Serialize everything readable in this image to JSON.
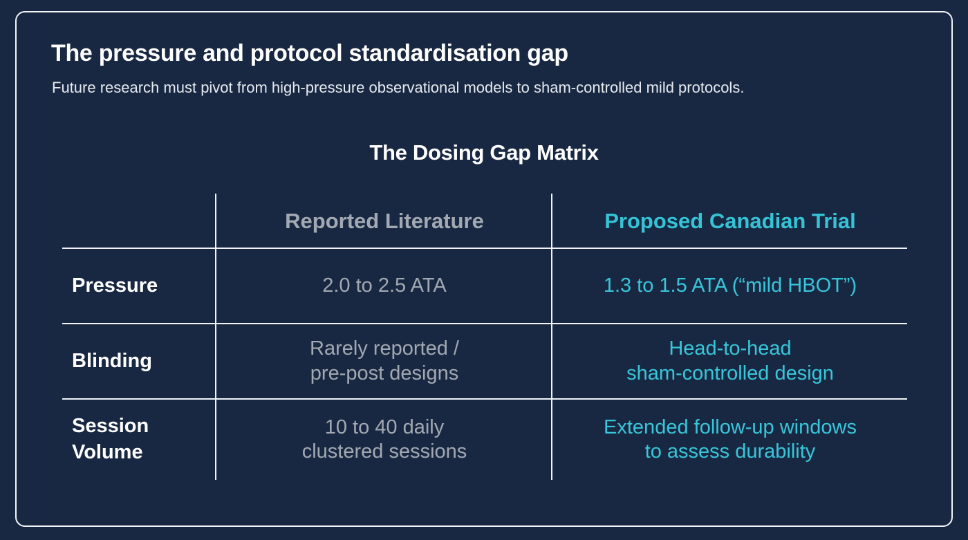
{
  "header": {
    "title": "The pressure and protocol standardisation gap",
    "subtitle": "Future research must pivot from high-pressure observational models to sham-controlled mild protocols."
  },
  "matrix": {
    "title": "The Dosing Gap Matrix",
    "columns": {
      "literature": "Reported Literature",
      "proposed": "Proposed Canadian Trial"
    },
    "rows": [
      {
        "label": "Pressure",
        "literature": "2.0 to 2.5 ATA",
        "proposed": "1.3 to 1.5 ATA (“mild HBOT”)"
      },
      {
        "label": "Blinding",
        "literature": "Rarely reported /\npre-post designs",
        "proposed": "Head-to-head\nsham-controlled design"
      },
      {
        "label": "Session\nVolume",
        "literature": "10 to 40 daily\nclustered sessions",
        "proposed": "Extended follow-up windows\nto assess durability"
      }
    ]
  },
  "colors": {
    "background": "#192842",
    "literature_text": "#a3a9b2",
    "proposed_text": "#35c3d6",
    "rule": "#f2f4f7"
  }
}
